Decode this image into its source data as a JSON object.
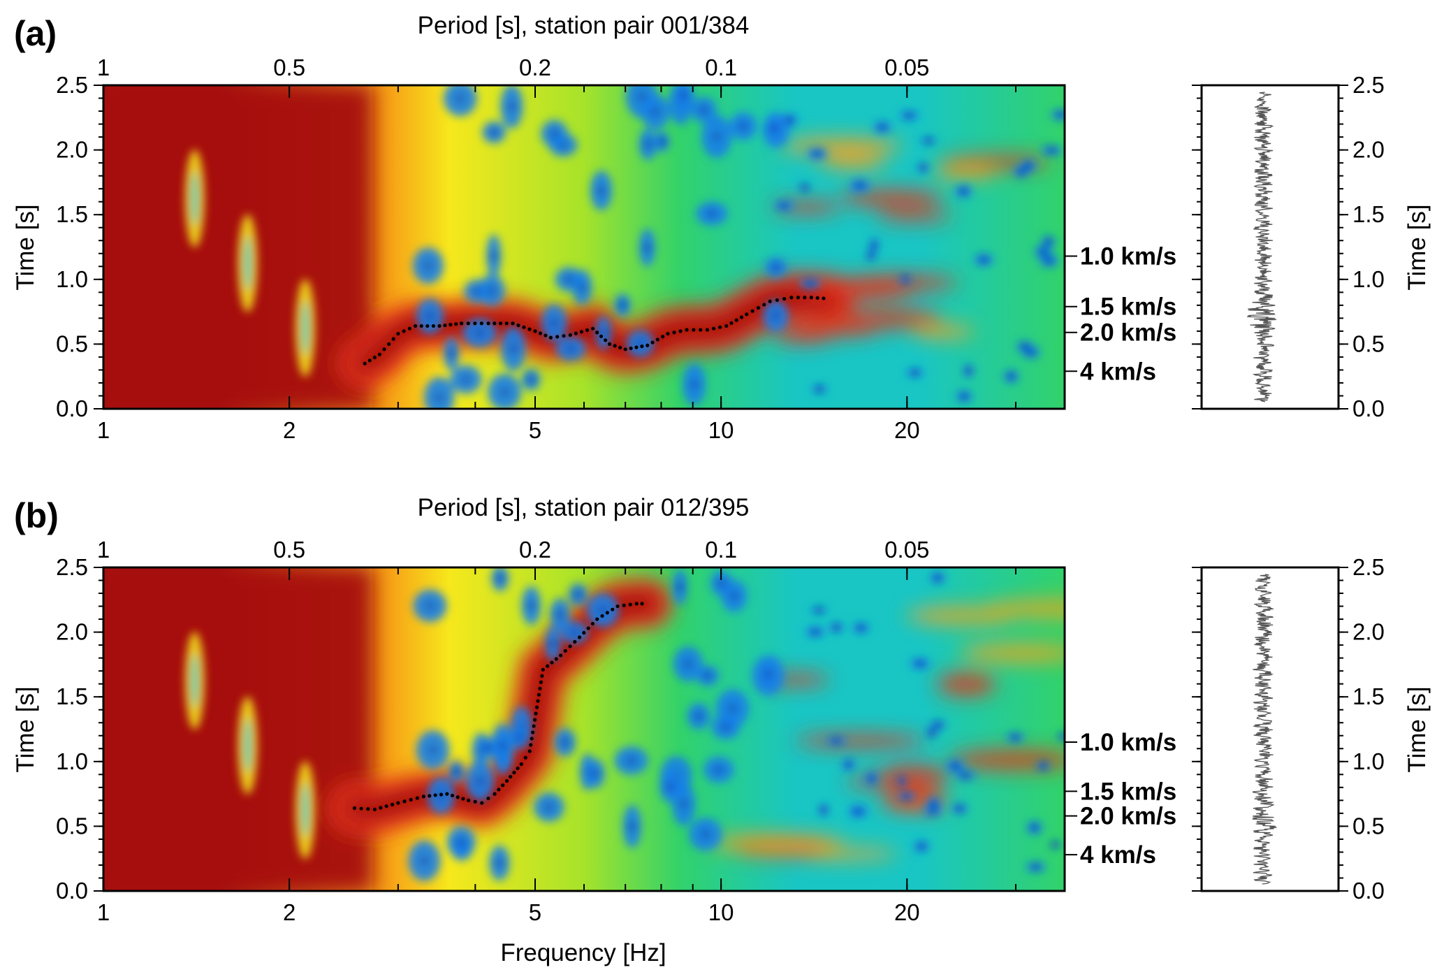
{
  "chart_data": [
    {
      "type": "heatmap",
      "panel_label": "(a)",
      "top_axis_label": "Period [s], station pair 001/384",
      "xlabel": "",
      "ylabel": "Time [s]",
      "right_ylabel": "Time [s]",
      "xscale": "log",
      "xlim": [
        1,
        36
      ],
      "ylim": [
        0.0,
        2.5
      ],
      "bottom_ticks": [
        {
          "v": 1,
          "t": "1"
        },
        {
          "v": 2,
          "t": "2"
        },
        {
          "v": 5,
          "t": "5"
        },
        {
          "v": 10,
          "t": "10"
        },
        {
          "v": 20,
          "t": "20"
        }
      ],
      "top_ticks": [
        {
          "v": 1,
          "t": "1"
        },
        {
          "v": 0.5,
          "t": "0.5"
        },
        {
          "v": 0.2,
          "t": "0.2"
        },
        {
          "v": 0.1,
          "t": "0.1"
        },
        {
          "v": 0.05,
          "t": "0.05"
        }
      ],
      "y_ticks": [
        "0.0",
        "0.5",
        "1.0",
        "1.5",
        "2.0",
        "2.5"
      ],
      "velocity_labels": [
        {
          "time": 1.18,
          "label": "1.0 km/s"
        },
        {
          "time": 0.79,
          "label": "1.5 km/s"
        },
        {
          "time": 0.59,
          "label": "2.0 km/s"
        },
        {
          "time": 0.29,
          "label": "4 km/s"
        }
      ],
      "picks": {
        "freq": [
          2.65,
          2.8,
          3.0,
          3.2,
          3.5,
          3.8,
          4.2,
          4.6,
          5.0,
          5.3,
          5.7,
          6.2,
          6.6,
          7.0,
          7.6,
          8.2,
          8.8,
          9.5,
          10.2,
          11.0,
          12.0,
          13.0,
          14.0,
          15.0
        ],
        "time": [
          0.35,
          0.42,
          0.58,
          0.64,
          0.64,
          0.66,
          0.66,
          0.66,
          0.6,
          0.55,
          0.57,
          0.62,
          0.5,
          0.46,
          0.49,
          0.58,
          0.61,
          0.61,
          0.64,
          0.73,
          0.83,
          0.86,
          0.86,
          0.85
        ]
      },
      "colormap": [
        "#0a2f9e",
        "#1a7fe8",
        "#19c6c4",
        "#32d26a",
        "#a6e32a",
        "#f6e81c",
        "#f7a417",
        "#e5331b",
        "#a50a08"
      ],
      "waveform_ylim": [
        0.0,
        2.5
      ]
    },
    {
      "type": "heatmap",
      "panel_label": "(b)",
      "top_axis_label": "Period [s], station pair 012/395",
      "xlabel": "Frequency [Hz]",
      "ylabel": "Time [s]",
      "right_ylabel": "Time [s]",
      "xscale": "log",
      "xlim": [
        1,
        36
      ],
      "ylim": [
        0.0,
        2.5
      ],
      "bottom_ticks": [
        {
          "v": 1,
          "t": "1"
        },
        {
          "v": 2,
          "t": "2"
        },
        {
          "v": 5,
          "t": "5"
        },
        {
          "v": 10,
          "t": "10"
        },
        {
          "v": 20,
          "t": "20"
        }
      ],
      "top_ticks": [
        {
          "v": 1,
          "t": "1"
        },
        {
          "v": 0.5,
          "t": "0.5"
        },
        {
          "v": 0.2,
          "t": "0.2"
        },
        {
          "v": 0.1,
          "t": "0.1"
        },
        {
          "v": 0.05,
          "t": "0.05"
        }
      ],
      "y_ticks": [
        "0.0",
        "0.5",
        "1.0",
        "1.5",
        "2.0",
        "2.5"
      ],
      "velocity_labels": [
        {
          "time": 1.15,
          "label": "1.0 km/s"
        },
        {
          "time": 0.77,
          "label": "1.5 km/s"
        },
        {
          "time": 0.58,
          "label": "2.0 km/s"
        },
        {
          "time": 0.28,
          "label": "4 km/s"
        }
      ],
      "picks": {
        "freq": [
          2.55,
          2.75,
          3.0,
          3.3,
          3.6,
          3.9,
          4.1,
          4.3,
          4.5,
          4.75,
          4.9,
          5.15,
          5.5,
          5.9,
          6.3,
          6.8,
          7.3,
          7.6
        ],
        "time": [
          0.64,
          0.63,
          0.68,
          0.73,
          0.75,
          0.7,
          0.68,
          0.75,
          0.85,
          0.98,
          1.08,
          1.71,
          1.82,
          1.96,
          2.1,
          2.2,
          2.22,
          2.22
        ]
      },
      "colormap": [
        "#0a2f9e",
        "#1a7fe8",
        "#19c6c4",
        "#32d26a",
        "#a6e32a",
        "#f6e81c",
        "#f7a417",
        "#e5331b",
        "#a50a08"
      ],
      "waveform_ylim": [
        0.0,
        2.5
      ]
    }
  ]
}
